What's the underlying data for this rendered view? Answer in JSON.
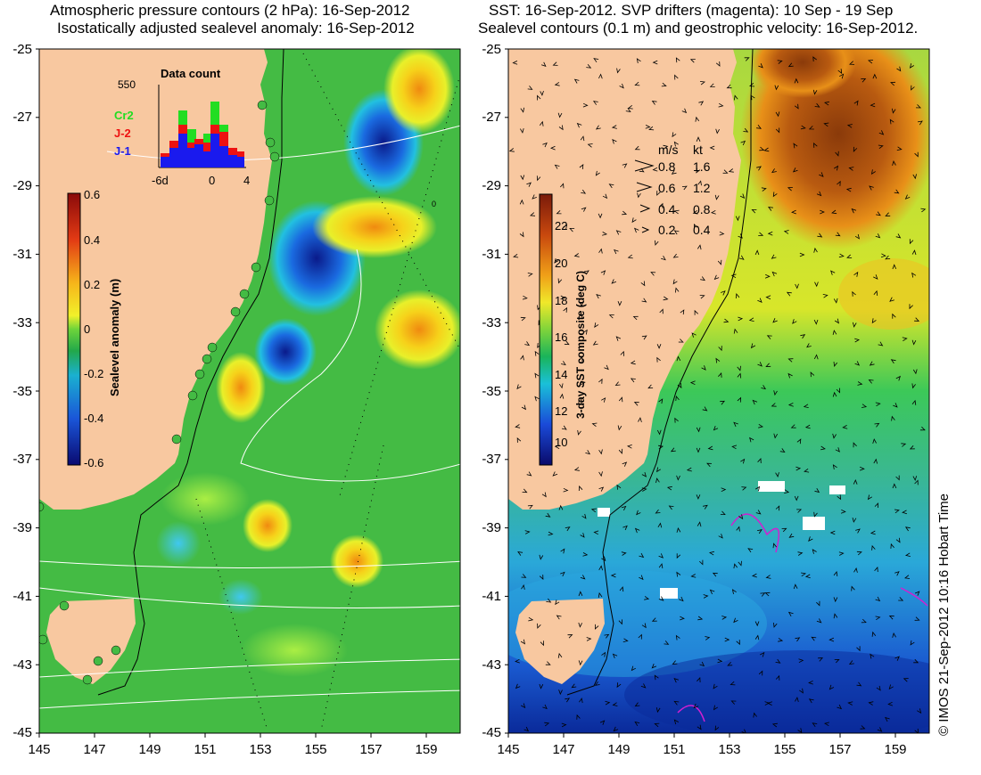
{
  "left_panel": {
    "title_line1": "Atmospheric pressure contours (2 hPa): 16-Sep-2012",
    "title_line2": "Isostatically adjusted sealevel anomaly: 16-Sep-2012",
    "colorbar_label": "Sealevel anomaly (m)",
    "colorbar_ticks": [
      "0.6",
      "0.4",
      "0.2",
      "0",
      "-0.2",
      "-0.4",
      "-0.6"
    ],
    "inset": {
      "title": "Data count",
      "max_label": "550",
      "x_ticks": [
        "-6d",
        "0",
        "4"
      ],
      "legend": [
        {
          "label": "Cr2",
          "color": "#22dd22"
        },
        {
          "label": "J-2",
          "color": "#ee1111"
        },
        {
          "label": "J-1",
          "color": "#1a1aee"
        }
      ]
    },
    "contour_label": "0"
  },
  "right_panel": {
    "title_line1": "SST: 16-Sep-2012. SVP drifters (magenta): 10 Sep - 19 Sep",
    "title_line2": "Sealevel contours (0.1 m) and geostrophic velocity: 16-Sep-2012.",
    "colorbar_label": "3-day SST composite (deg C)",
    "colorbar_ticks": [
      "22",
      "20",
      "18",
      "16",
      "14",
      "12",
      "10"
    ],
    "velocity_legend": {
      "header_ms": "m/s",
      "header_kt": "kt",
      "rows": [
        {
          "ms": "0.8",
          "kt": "1.6"
        },
        {
          "ms": "0.6",
          "kt": "1.2"
        },
        {
          "ms": "0.4",
          "kt": "0.8"
        },
        {
          "ms": "0.2",
          "kt": "0.4"
        }
      ]
    }
  },
  "axes": {
    "y_ticks": [
      "-25",
      "-27",
      "-29",
      "-31",
      "-33",
      "-35",
      "-37",
      "-39",
      "-41",
      "-43",
      "-45"
    ],
    "x_ticks": [
      "145",
      "147",
      "149",
      "151",
      "153",
      "155",
      "157",
      "159"
    ]
  },
  "credit": "© IMOS 21-Sep-2012 10:16 Hobart Time",
  "colors": {
    "land": "#f8c8a0",
    "ssh_ocean": "#33aa33",
    "sst_ocean": "#2e9ad8"
  }
}
